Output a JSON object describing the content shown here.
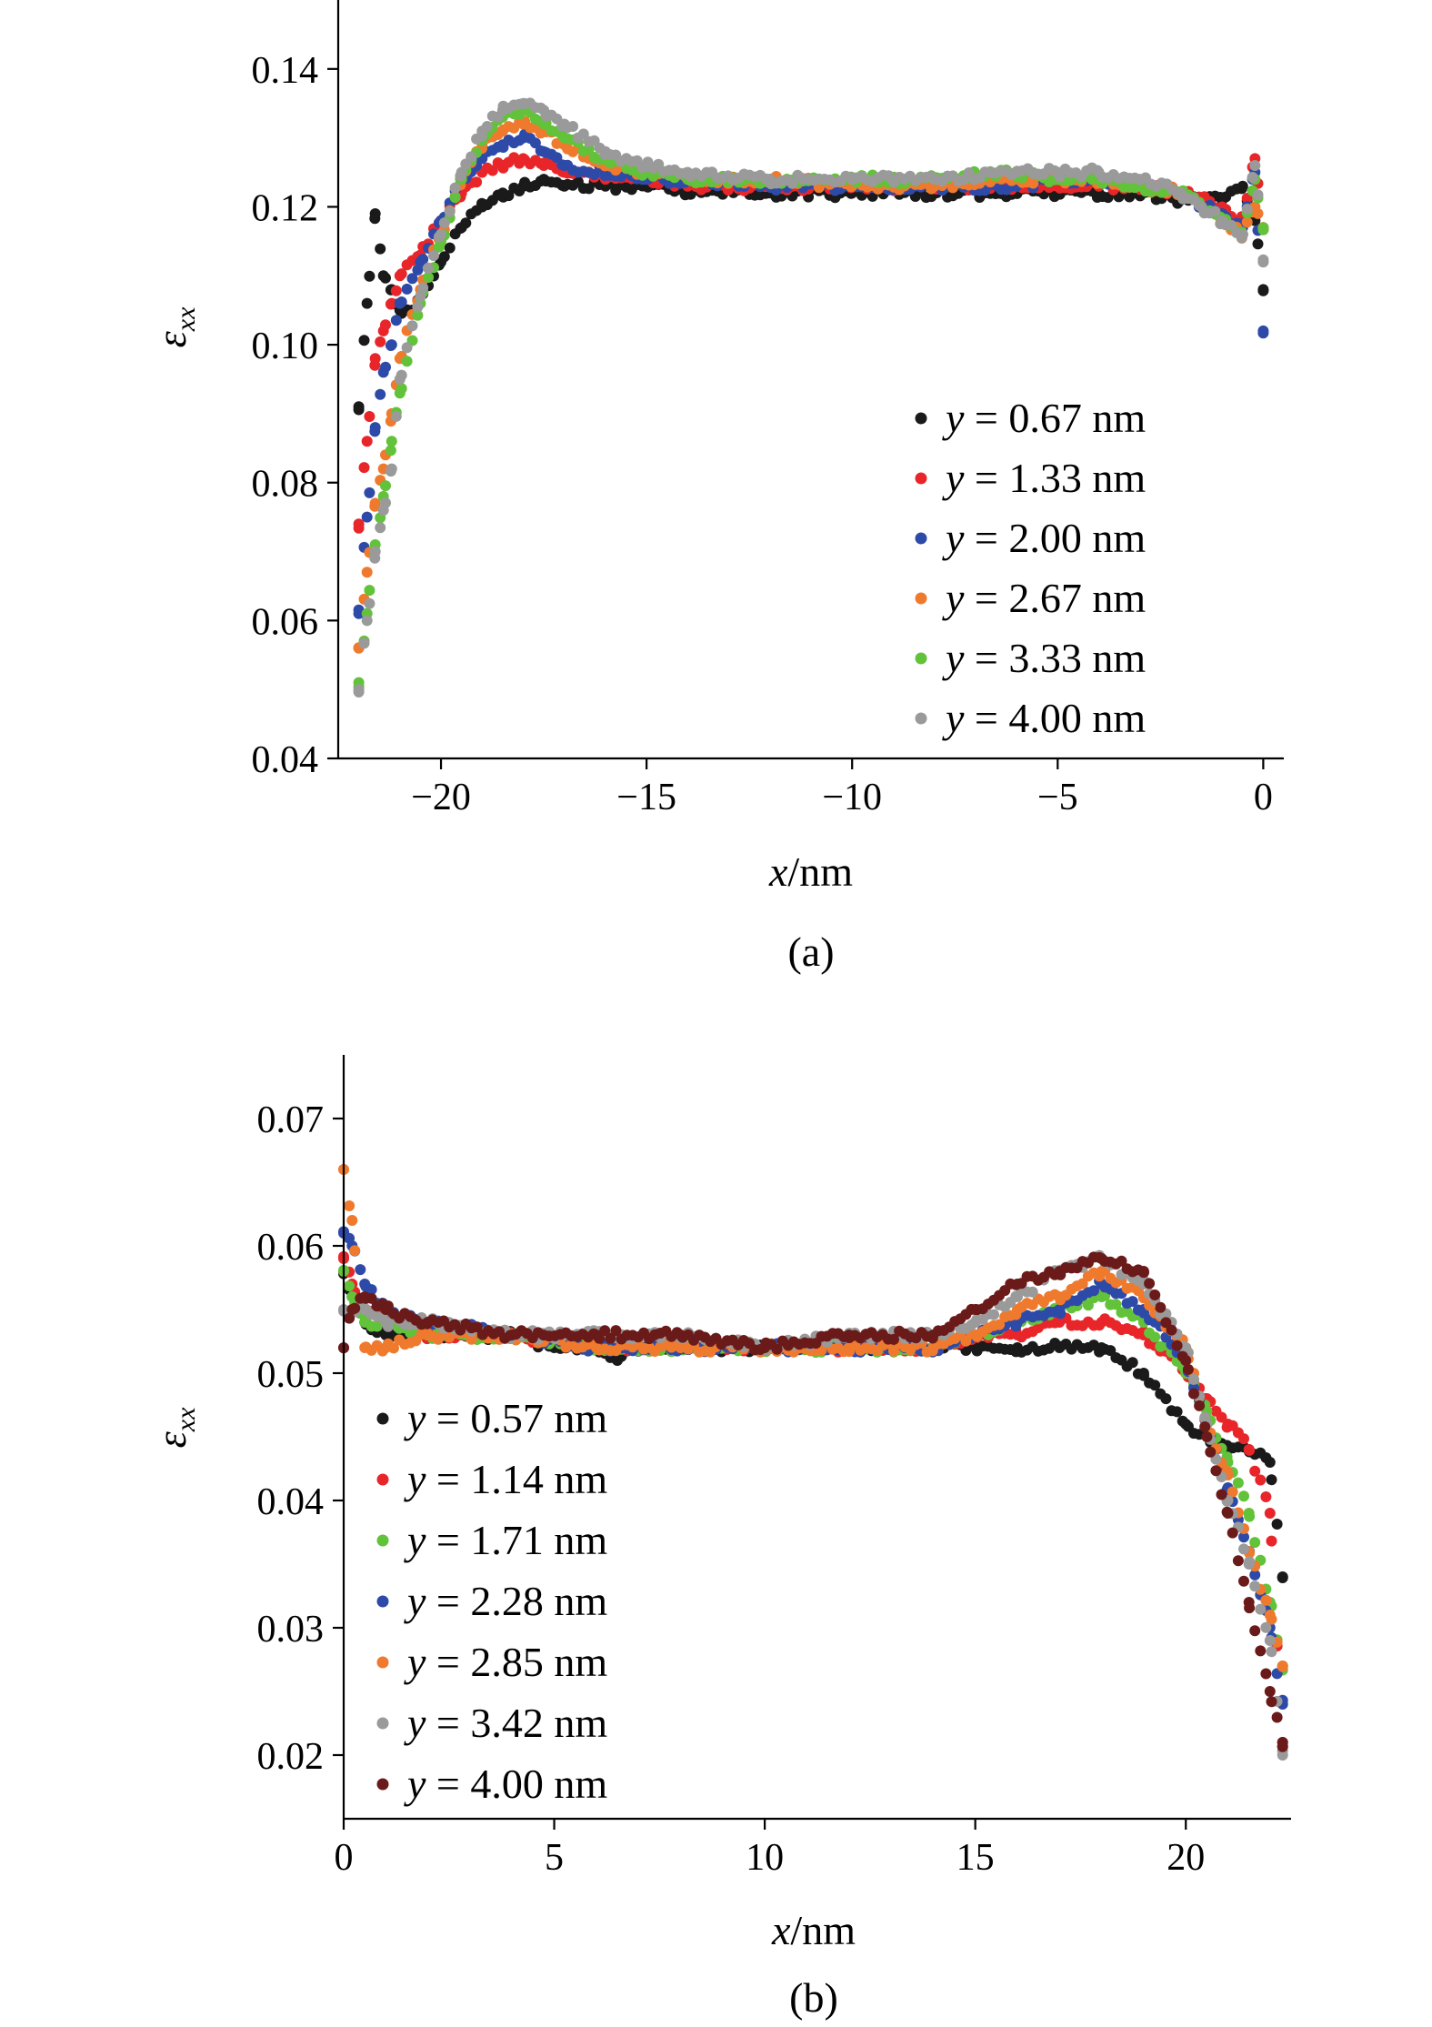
{
  "chart_data": [
    {
      "type": "scatter",
      "panel_label": "(a)",
      "xlabel_var": "x",
      "xlabel_unit": "/nm",
      "ylabel_sym": "ε",
      "ylabel_sub": "xx",
      "xlim": [
        -22.5,
        0.5
      ],
      "ylim": [
        0.04,
        0.15
      ],
      "xticks": [
        -20,
        -15,
        -10,
        -5,
        0
      ],
      "xtick_labels": [
        "−20",
        "−15",
        "−10",
        "−5",
        "0"
      ],
      "yticks": [
        0.04,
        0.06,
        0.08,
        0.1,
        0.12,
        0.14
      ],
      "ytick_labels": [
        "0.04",
        "0.06",
        "0.08",
        "0.10",
        "0.12",
        "0.14"
      ],
      "legend_position": "right",
      "series": [
        {
          "name": "0.67 nm",
          "color": "#1a1a1a",
          "x": [
            -22,
            -21.8,
            -21.6,
            -21.4,
            -21.2,
            -21,
            -20.8,
            -20.5,
            -20,
            -19.5,
            -19,
            -18.5,
            -18,
            -17.5,
            -17,
            -16,
            -15,
            -14,
            -12,
            -10,
            -8,
            -6,
            -5,
            -4,
            -3,
            -2,
            -1.5,
            -1,
            -0.5,
            -0.2,
            0
          ],
          "y": [
            0.091,
            0.106,
            0.119,
            0.11,
            0.108,
            0.105,
            0.105,
            0.107,
            0.112,
            0.117,
            0.12,
            0.122,
            0.123,
            0.124,
            0.123,
            0.123,
            0.123,
            0.122,
            0.122,
            0.122,
            0.122,
            0.122,
            0.122,
            0.122,
            0.122,
            0.121,
            0.121,
            0.121,
            0.123,
            0.118,
            0.108
          ]
        },
        {
          "name": "1.33 nm",
          "color": "#e8262a",
          "x": [
            -22,
            -21.8,
            -21.6,
            -21.4,
            -21.2,
            -21,
            -20.5,
            -20,
            -19.5,
            -19,
            -18.5,
            -18,
            -17.5,
            -17,
            -16,
            -15,
            -14,
            -12,
            -10,
            -8,
            -6,
            -5,
            -4,
            -3,
            -2,
            -1.5,
            -1,
            -0.5,
            -0.2,
            0
          ],
          "y": [
            0.074,
            0.086,
            0.098,
            0.102,
            0.106,
            0.11,
            0.113,
            0.118,
            0.122,
            0.125,
            0.126,
            0.127,
            0.126,
            0.125,
            0.124,
            0.124,
            0.123,
            0.123,
            0.123,
            0.123,
            0.123,
            0.123,
            0.123,
            0.123,
            0.122,
            0.121,
            0.12,
            0.118,
            0.127,
            0.117
          ]
        },
        {
          "name": "2.00 nm",
          "color": "#2e4aa8",
          "x": [
            -22,
            -21.8,
            -21.6,
            -21.4,
            -21.2,
            -21,
            -20.5,
            -20,
            -19.5,
            -19,
            -18.5,
            -18,
            -17.5,
            -17,
            -16,
            -15,
            -14,
            -12,
            -10,
            -8,
            -6,
            -5,
            -4,
            -3,
            -2,
            -1.5,
            -1,
            -0.5,
            -0.2,
            0
          ],
          "y": [
            0.061,
            0.075,
            0.088,
            0.096,
            0.1,
            0.106,
            0.112,
            0.118,
            0.124,
            0.127,
            0.129,
            0.13,
            0.128,
            0.126,
            0.125,
            0.124,
            0.124,
            0.123,
            0.123,
            0.123,
            0.123,
            0.124,
            0.124,
            0.123,
            0.122,
            0.12,
            0.119,
            0.117,
            0.125,
            0.102
          ]
        },
        {
          "name": "2.67 nm",
          "color": "#ef7a2e",
          "x": [
            -22,
            -21.8,
            -21.6,
            -21.4,
            -21.2,
            -21,
            -20.5,
            -20,
            -19.5,
            -19,
            -18.5,
            -18,
            -17.5,
            -17,
            -16,
            -15,
            -14,
            -12,
            -10,
            -8,
            -6,
            -5,
            -4,
            -3,
            -2,
            -1.5,
            -1,
            -0.5,
            -0.2,
            0
          ],
          "y": [
            0.056,
            0.067,
            0.077,
            0.082,
            0.09,
            0.098,
            0.108,
            0.116,
            0.124,
            0.129,
            0.131,
            0.132,
            0.131,
            0.129,
            0.126,
            0.125,
            0.124,
            0.124,
            0.123,
            0.123,
            0.124,
            0.124,
            0.124,
            0.123,
            0.122,
            0.12,
            0.118,
            0.116,
            0.12,
            0.117
          ]
        },
        {
          "name": "3.33 nm",
          "color": "#62c23a",
          "x": [
            -22,
            -21.8,
            -21.6,
            -21.4,
            -21.2,
            -21,
            -20.5,
            -20,
            -19.5,
            -19,
            -18.5,
            -18,
            -17.5,
            -17,
            -16,
            -15,
            -14,
            -12,
            -10,
            -8,
            -6,
            -5,
            -4,
            -3,
            -2,
            -1.5,
            -1,
            -0.5,
            -0.2,
            0
          ],
          "y": [
            0.051,
            0.061,
            0.071,
            0.078,
            0.086,
            0.093,
            0.106,
            0.115,
            0.124,
            0.13,
            0.133,
            0.134,
            0.132,
            0.13,
            0.127,
            0.125,
            0.124,
            0.124,
            0.124,
            0.124,
            0.125,
            0.124,
            0.124,
            0.123,
            0.122,
            0.12,
            0.118,
            0.116,
            0.124,
            0.117
          ]
        },
        {
          "name": "4.00 nm",
          "color": "#9a9a9a",
          "x": [
            -22,
            -21.8,
            -21.6,
            -21.4,
            -21.2,
            -21,
            -20.5,
            -20,
            -19.5,
            -19,
            -18.5,
            -18,
            -17.5,
            -17,
            -16,
            -15,
            -14,
            -12,
            -10,
            -8,
            -6,
            -5,
            -4,
            -3,
            -2,
            -1.5,
            -1,
            -0.5,
            -0.2,
            0
          ],
          "y": [
            0.05,
            0.06,
            0.07,
            0.076,
            0.082,
            0.095,
            0.107,
            0.116,
            0.125,
            0.131,
            0.134,
            0.135,
            0.134,
            0.132,
            0.128,
            0.126,
            0.125,
            0.124,
            0.124,
            0.124,
            0.125,
            0.125,
            0.125,
            0.124,
            0.122,
            0.12,
            0.118,
            0.116,
            0.126,
            0.112
          ]
        }
      ]
    },
    {
      "type": "scatter",
      "panel_label": "(b)",
      "xlabel_var": "x",
      "xlabel_unit": "/nm",
      "ylabel_sym": "ε",
      "ylabel_sub": "xx",
      "xlim": [
        0,
        22.5
      ],
      "ylim": [
        0.015,
        0.075
      ],
      "xticks": [
        0,
        5,
        10,
        15,
        20
      ],
      "xtick_labels": [
        "0",
        "5",
        "10",
        "15",
        "20"
      ],
      "yticks": [
        0.02,
        0.03,
        0.04,
        0.05,
        0.06,
        0.07
      ],
      "ytick_labels": [
        "0.02",
        "0.03",
        "0.04",
        "0.05",
        "0.06",
        "0.07"
      ],
      "legend_position": "left",
      "series": [
        {
          "name": "0.57 nm",
          "color": "#1a1a1a",
          "x": [
            0,
            0.2,
            0.5,
            1,
            2,
            3,
            4,
            5,
            6,
            6.5,
            7,
            8,
            10,
            12,
            14,
            15,
            16,
            17,
            18,
            19,
            20,
            21,
            21.5,
            22,
            22.3
          ],
          "y": [
            0.058,
            0.056,
            0.054,
            0.053,
            0.053,
            0.053,
            0.053,
            0.052,
            0.052,
            0.051,
            0.052,
            0.052,
            0.052,
            0.052,
            0.052,
            0.052,
            0.052,
            0.052,
            0.052,
            0.05,
            0.046,
            0.044,
            0.044,
            0.043,
            0.034
          ]
        },
        {
          "name": "1.14 nm",
          "color": "#e8262a",
          "x": [
            0,
            0.2,
            0.5,
            1,
            2,
            4,
            6,
            8,
            10,
            12,
            14,
            15,
            16,
            17,
            18,
            19,
            20,
            20.5,
            21,
            21.5,
            22,
            22.3
          ],
          "y": [
            0.059,
            0.057,
            0.055,
            0.054,
            0.053,
            0.053,
            0.052,
            0.052,
            0.052,
            0.052,
            0.052,
            0.053,
            0.053,
            0.054,
            0.054,
            0.053,
            0.05,
            0.048,
            0.046,
            0.044,
            0.039,
            0.021
          ]
        },
        {
          "name": "1.71 nm",
          "color": "#62c23a",
          "x": [
            0,
            0.2,
            0.5,
            1,
            2,
            4,
            6,
            8,
            10,
            12,
            14,
            15,
            16,
            17,
            18,
            19,
            20,
            20.5,
            21,
            21.5,
            22,
            22.3
          ],
          "y": [
            0.058,
            0.056,
            0.054,
            0.054,
            0.053,
            0.053,
            0.052,
            0.052,
            0.052,
            0.052,
            0.052,
            0.053,
            0.054,
            0.055,
            0.056,
            0.054,
            0.05,
            0.047,
            0.043,
            0.039,
            0.032,
            0.027
          ]
        },
        {
          "name": "2.28 nm",
          "color": "#2e4aa8",
          "x": [
            0,
            0.2,
            0.5,
            1,
            2,
            4,
            6,
            8,
            10,
            12,
            14,
            15,
            16,
            17,
            18,
            19,
            20,
            20.5,
            21,
            21.5,
            22,
            22.3
          ],
          "y": [
            0.061,
            0.06,
            0.057,
            0.055,
            0.054,
            0.053,
            0.052,
            0.052,
            0.052,
            0.052,
            0.052,
            0.053,
            0.054,
            0.055,
            0.057,
            0.055,
            0.051,
            0.046,
            0.041,
            0.036,
            0.03,
            0.024
          ]
        },
        {
          "name": "2.85 nm",
          "color": "#ef7a2e",
          "x": [
            0,
            0.2,
            0.5,
            1,
            2,
            4,
            6,
            8,
            10,
            12,
            14,
            15,
            16,
            17,
            18,
            19,
            20,
            20.5,
            21,
            21.5,
            22,
            22.3
          ],
          "y": [
            0.066,
            0.062,
            0.052,
            0.052,
            0.053,
            0.053,
            0.052,
            0.052,
            0.052,
            0.052,
            0.052,
            0.053,
            0.055,
            0.056,
            0.058,
            0.056,
            0.052,
            0.046,
            0.042,
            0.036,
            0.031,
            0.027
          ]
        },
        {
          "name": "3.42 nm",
          "color": "#9a9a9a",
          "x": [
            0,
            0.2,
            0.5,
            1,
            2,
            4,
            6,
            8,
            10,
            12,
            14,
            15,
            16,
            17,
            18,
            19,
            20,
            20.5,
            21,
            21.5,
            22,
            22.3
          ],
          "y": [
            0.055,
            0.055,
            0.055,
            0.054,
            0.054,
            0.053,
            0.053,
            0.053,
            0.052,
            0.053,
            0.053,
            0.054,
            0.056,
            0.058,
            0.059,
            0.057,
            0.052,
            0.046,
            0.04,
            0.035,
            0.029,
            0.02
          ]
        },
        {
          "name": "4.00 nm",
          "color": "#6b1a1a",
          "x": [
            0,
            0.2,
            0.5,
            1,
            2,
            4,
            6,
            8,
            10,
            12,
            14,
            15,
            16,
            17,
            18,
            19,
            20,
            20.5,
            21,
            21.5,
            22,
            22.3
          ],
          "y": [
            0.052,
            0.055,
            0.056,
            0.055,
            0.054,
            0.053,
            0.053,
            0.053,
            0.052,
            0.053,
            0.053,
            0.055,
            0.057,
            0.058,
            0.059,
            0.058,
            0.051,
            0.045,
            0.039,
            0.032,
            0.025,
            0.021
          ]
        }
      ]
    }
  ]
}
